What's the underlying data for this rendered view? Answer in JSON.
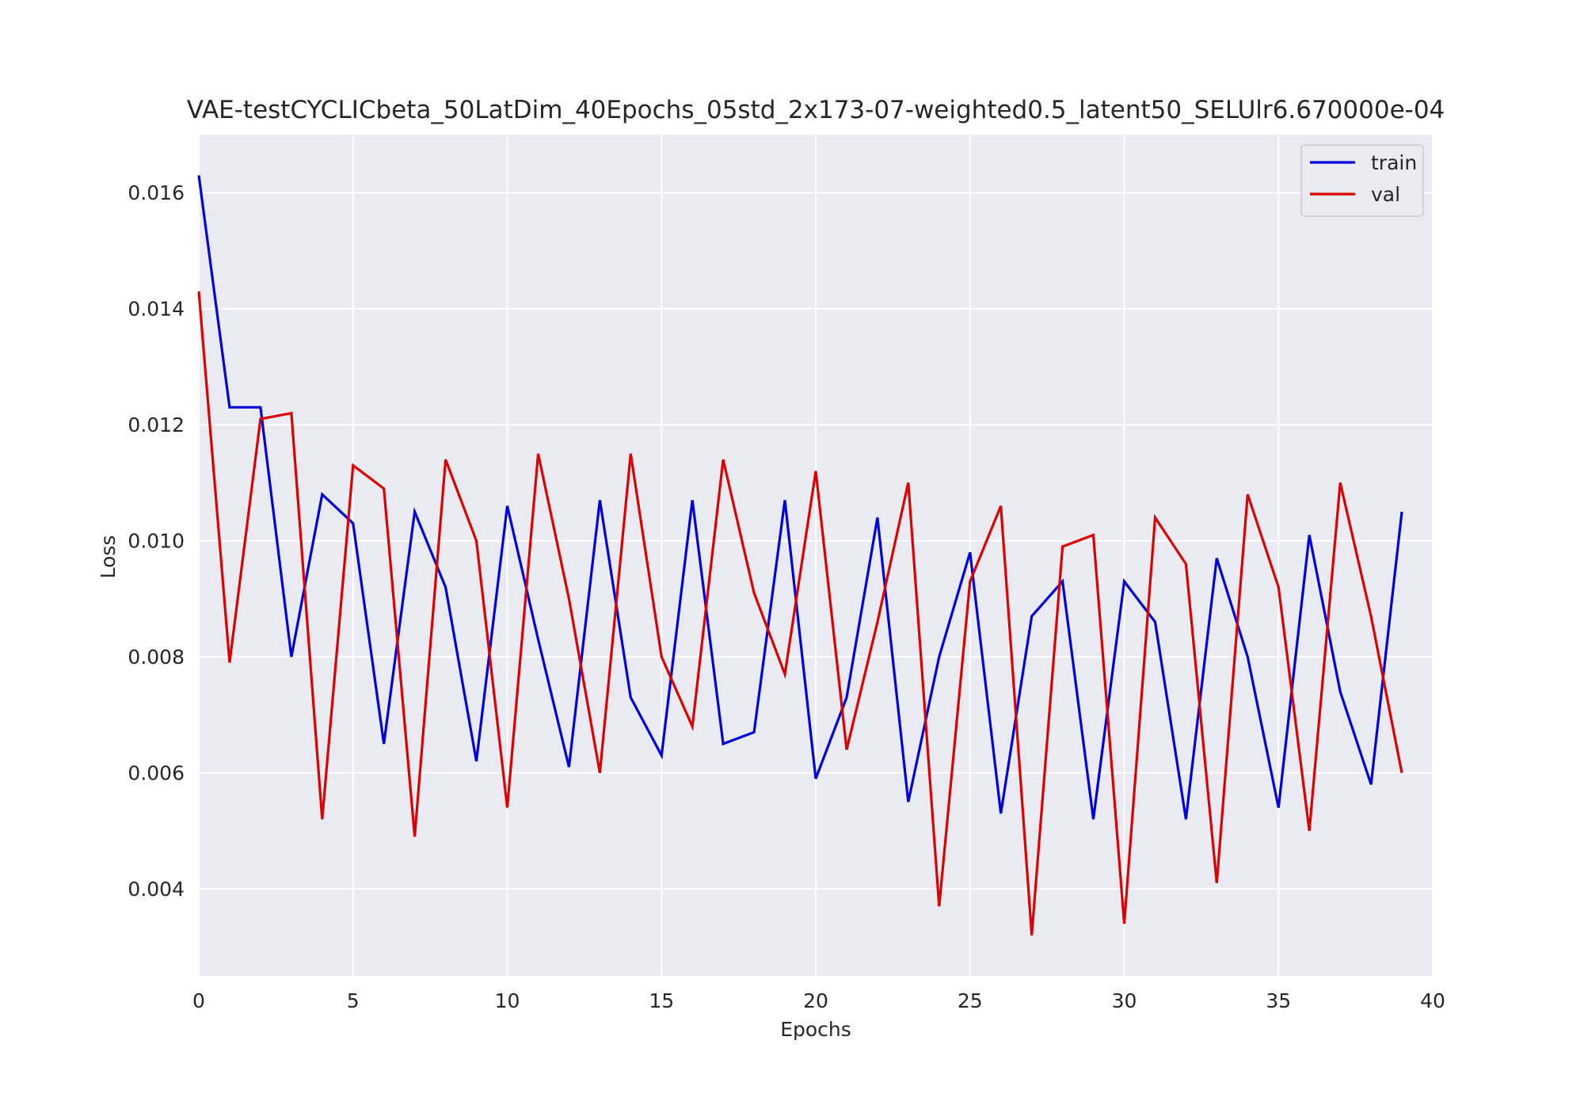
{
  "chart_data": {
    "type": "line",
    "title": "VAE-testCYCLICbeta_50LatDim_40Epochs_05std_2x173-07-weighted0.5_latent50_SELUlr6.670000e-04",
    "xlabel": "Epochs",
    "ylabel": "Loss",
    "xlim": [
      0,
      40
    ],
    "ylim": [
      0.0025,
      0.017
    ],
    "xticks": [
      0,
      5,
      10,
      15,
      20,
      25,
      30,
      35,
      40
    ],
    "yticks": [
      0.004,
      0.006,
      0.008,
      0.01,
      0.012,
      0.014,
      0.016
    ],
    "ytick_labels": [
      "0.004",
      "0.006",
      "0.008",
      "0.010",
      "0.012",
      "0.014",
      "0.016"
    ],
    "grid": true,
    "legend_position": "top-right",
    "background": "#eaeaf2",
    "x": [
      0,
      1,
      2,
      3,
      4,
      5,
      6,
      7,
      8,
      9,
      10,
      11,
      12,
      13,
      14,
      15,
      16,
      17,
      18,
      19,
      20,
      21,
      22,
      23,
      24,
      25,
      26,
      27,
      28,
      29,
      30,
      31,
      32,
      33,
      34,
      35,
      36,
      37,
      38,
      39
    ],
    "series": [
      {
        "name": "train",
        "color": "#0000dd",
        "values": [
          0.0163,
          0.0123,
          0.0123,
          0.008,
          0.0108,
          0.0103,
          0.0065,
          0.0105,
          0.0092,
          0.0062,
          0.0106,
          0.0083,
          0.0061,
          0.0107,
          0.0073,
          0.0063,
          0.0107,
          0.0065,
          0.0067,
          0.0107,
          0.0059,
          0.0073,
          0.0104,
          0.0055,
          0.008,
          0.0098,
          0.0053,
          0.0087,
          0.0093,
          0.0052,
          0.0093,
          0.0086,
          0.0052,
          0.0097,
          0.008,
          0.0054,
          0.0101,
          0.0074,
          0.0058,
          0.0105
        ]
      },
      {
        "name": "val",
        "color": "#dd0000",
        "values": [
          0.0143,
          0.0079,
          0.0121,
          0.0122,
          0.0052,
          0.0113,
          0.0109,
          0.0049,
          0.0114,
          0.01,
          0.0054,
          0.0115,
          0.009,
          0.006,
          0.0115,
          0.008,
          0.0068,
          0.0114,
          0.0091,
          0.0077,
          0.0112,
          0.0064,
          0.0086,
          0.011,
          0.0037,
          0.0093,
          0.0106,
          0.0032,
          0.0099,
          0.0101,
          0.0034,
          0.0104,
          0.0096,
          0.0041,
          0.0108,
          0.0092,
          0.005,
          0.011,
          0.0087,
          0.006
        ]
      }
    ]
  }
}
